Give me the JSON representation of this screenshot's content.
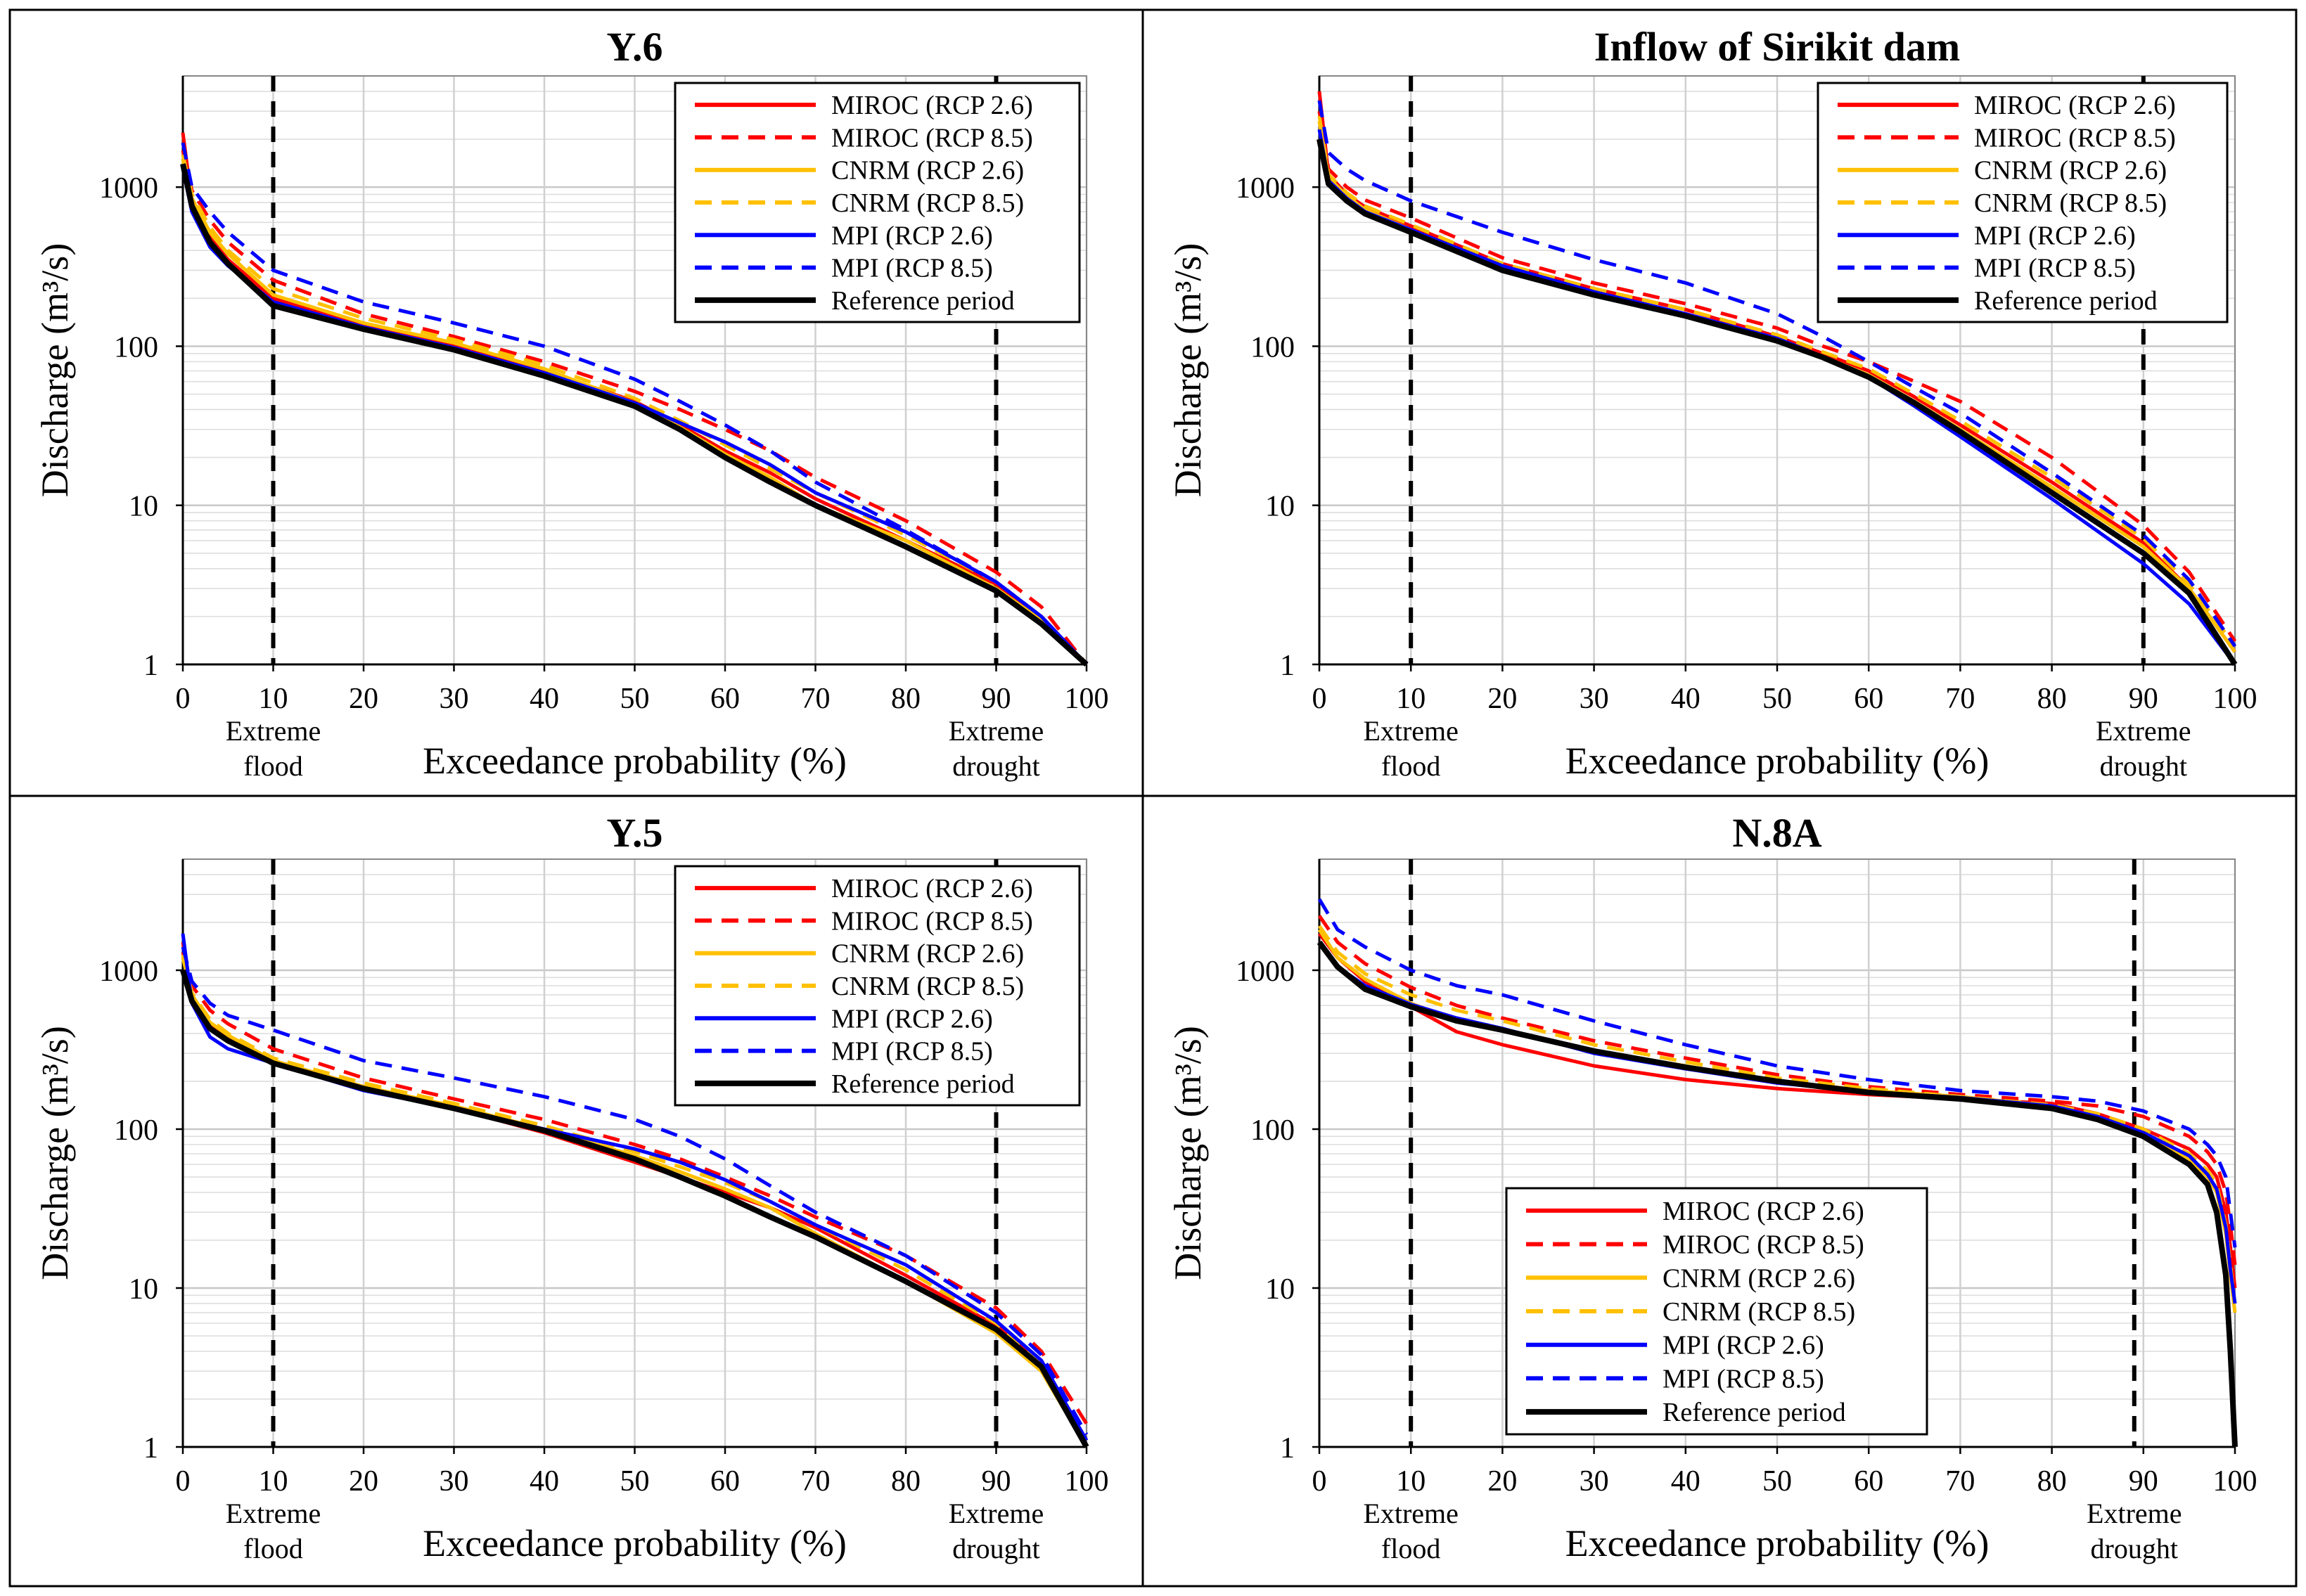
{
  "figure": {
    "annotations": {
      "flood_line1": "Extreme",
      "flood_line2": "flood",
      "drought_line1": "Extreme",
      "drought_line2": "drought"
    },
    "legend_labels": [
      "MIROC (RCP 2.6)",
      "MIROC (RCP 8.5)",
      "CNRM (RCP 2.6)",
      "CNRM (RCP 8.5)",
      "MPI (RCP 2.6)",
      "MPI (RCP 8.5)",
      "Reference period"
    ]
  },
  "chart_data": [
    {
      "type": "line",
      "title": "Y.6",
      "xlabel": "Exceedance probability (%)",
      "ylabel": "Discharge (m³/s)",
      "xlim": [
        0,
        100
      ],
      "ylim": [
        1,
        5000
      ],
      "yscale": "log",
      "grid": true,
      "legend_position": "top-right",
      "x_ticks": [
        "0",
        "10",
        "20",
        "30",
        "40",
        "50",
        "60",
        "70",
        "80",
        "90",
        "100"
      ],
      "y_ticks": [
        "1",
        "10",
        "100",
        "1000"
      ],
      "reference_lines_x": [
        10,
        90
      ],
      "x": [
        0,
        1,
        3,
        5,
        10,
        20,
        30,
        40,
        50,
        55,
        60,
        65,
        70,
        80,
        90,
        95,
        100
      ],
      "series": [
        {
          "name": "MIROC (RCP 2.6)",
          "color": "#ff0000",
          "style": "solid",
          "values": [
            2200,
            800,
            480,
            350,
            200,
            135,
            100,
            70,
            45,
            32,
            22,
            16,
            11,
            6,
            3.2,
            2.0,
            1
          ]
        },
        {
          "name": "MIROC (RCP 8.5)",
          "color": "#ff0000",
          "style": "dashed",
          "values": [
            1700,
            950,
            620,
            450,
            260,
            160,
            115,
            80,
            52,
            40,
            30,
            22,
            15,
            8,
            3.8,
            2.3,
            1
          ]
        },
        {
          "name": "CNRM (RCP 2.6)",
          "color": "#ffc000",
          "style": "solid",
          "values": [
            1500,
            850,
            520,
            380,
            210,
            140,
            105,
            72,
            44,
            31,
            21,
            15,
            10,
            6,
            3.0,
            1.9,
            1
          ]
        },
        {
          "name": "CNRM (RCP 8.5)",
          "color": "#ffc000",
          "style": "dashed",
          "values": [
            1600,
            900,
            560,
            400,
            230,
            150,
            110,
            76,
            47,
            34,
            24,
            17,
            12,
            6.5,
            3.3,
            2.0,
            1
          ]
        },
        {
          "name": "MPI (RCP 2.6)",
          "color": "#0000ff",
          "style": "solid",
          "values": [
            1300,
            700,
            420,
            320,
            190,
            132,
            98,
            68,
            44,
            33,
            25,
            18,
            12,
            6.8,
            3.3,
            2.0,
            1
          ]
        },
        {
          "name": "MPI (RCP 8.5)",
          "color": "#0000ff",
          "style": "dashed",
          "values": [
            1900,
            1000,
            700,
            520,
            300,
            190,
            140,
            100,
            62,
            45,
            32,
            22,
            14,
            7,
            3.3,
            2.0,
            1
          ]
        },
        {
          "name": "Reference period",
          "color": "#000000",
          "style": "solid",
          "values": [
            1400,
            760,
            450,
            330,
            180,
            128,
            95,
            65,
            42,
            30,
            20,
            14,
            10,
            5.5,
            2.9,
            1.8,
            1
          ]
        }
      ]
    },
    {
      "type": "line",
      "title": "Inflow of Sirikit dam",
      "xlabel": "Exceedance probability (%)",
      "ylabel": "Discharge (m³/s)",
      "xlim": [
        0,
        100
      ],
      "ylim": [
        1,
        5000
      ],
      "yscale": "log",
      "grid": true,
      "legend_position": "top-right",
      "x_ticks": [
        "0",
        "10",
        "20",
        "30",
        "40",
        "50",
        "60",
        "70",
        "80",
        "90",
        "100"
      ],
      "y_ticks": [
        "1",
        "10",
        "100",
        "1000"
      ],
      "reference_lines_x": [
        10,
        90
      ],
      "x": [
        0,
        1,
        3,
        5,
        10,
        20,
        30,
        40,
        50,
        55,
        60,
        65,
        70,
        80,
        90,
        95,
        100
      ],
      "series": [
        {
          "name": "MIROC (RCP 2.6)",
          "color": "#ff0000",
          "style": "solid",
          "values": [
            4000,
            1200,
            900,
            750,
            570,
            330,
            230,
            170,
            115,
            90,
            70,
            48,
            32,
            14,
            5.8,
            3.0,
            1.2
          ]
        },
        {
          "name": "MIROC (RCP 8.5)",
          "color": "#ff0000",
          "style": "dashed",
          "values": [
            3000,
            1300,
            1000,
            830,
            640,
            360,
            250,
            185,
            130,
            100,
            80,
            60,
            45,
            20,
            7.5,
            3.8,
            1.4
          ]
        },
        {
          "name": "CNRM (RCP 2.6)",
          "color": "#ffc000",
          "style": "solid",
          "values": [
            2600,
            1150,
            880,
            720,
            540,
            310,
            215,
            160,
            110,
            86,
            66,
            45,
            30,
            13,
            5.5,
            3.0,
            1.2
          ]
        },
        {
          "name": "CNRM (RCP 8.5)",
          "color": "#ffc000",
          "style": "dashed",
          "values": [
            2800,
            1200,
            920,
            760,
            580,
            330,
            230,
            170,
            118,
            92,
            72,
            50,
            34,
            15,
            6.2,
            3.2,
            1.3
          ]
        },
        {
          "name": "MPI (RCP 2.6)",
          "color": "#0000ff",
          "style": "solid",
          "values": [
            2300,
            1100,
            850,
            700,
            540,
            320,
            220,
            160,
            112,
            86,
            64,
            42,
            27,
            11,
            4.3,
            2.4,
            1
          ]
        },
        {
          "name": "MPI (RCP 8.5)",
          "color": "#0000ff",
          "style": "dashed",
          "values": [
            3500,
            1650,
            1300,
            1100,
            820,
            520,
            350,
            250,
            160,
            115,
            80,
            55,
            38,
            16,
            6.5,
            3.4,
            1.3
          ]
        },
        {
          "name": "Reference period",
          "color": "#000000",
          "style": "solid",
          "values": [
            2000,
            1050,
            820,
            680,
            520,
            300,
            210,
            155,
            108,
            85,
            64,
            44,
            29,
            12,
            5.0,
            2.8,
            1
          ]
        }
      ]
    },
    {
      "type": "line",
      "title": "Y.5",
      "xlabel": "Exceedance probability (%)",
      "ylabel": "Discharge (m³/s)",
      "xlim": [
        0,
        100
      ],
      "ylim": [
        1,
        5000
      ],
      "yscale": "log",
      "grid": true,
      "legend_position": "top-right",
      "x_ticks": [
        "0",
        "10",
        "20",
        "30",
        "40",
        "50",
        "60",
        "70",
        "80",
        "90",
        "100"
      ],
      "y_ticks": [
        "1",
        "10",
        "100",
        "1000"
      ],
      "reference_lines_x": [
        10,
        90
      ],
      "x": [
        0,
        1,
        3,
        5,
        10,
        20,
        30,
        40,
        50,
        55,
        60,
        65,
        70,
        80,
        90,
        95,
        100
      ],
      "series": [
        {
          "name": "MIROC (RCP 2.6)",
          "color": "#ff0000",
          "style": "solid",
          "values": [
            1500,
            650,
            450,
            380,
            270,
            185,
            135,
            95,
            62,
            50,
            40,
            32,
            24,
            12,
            5.8,
            3.3,
            1.1
          ]
        },
        {
          "name": "MIROC (RCP 8.5)",
          "color": "#ff0000",
          "style": "dashed",
          "values": [
            1300,
            800,
            560,
            460,
            320,
            210,
            155,
            115,
            80,
            65,
            50,
            38,
            28,
            16,
            7.5,
            4.0,
            1.4
          ]
        },
        {
          "name": "CNRM (RCP 2.6)",
          "color": "#ffc000",
          "style": "solid",
          "values": [
            1200,
            700,
            470,
            390,
            270,
            185,
            140,
            100,
            68,
            54,
            42,
            32,
            22,
            11,
            5.2,
            3.0,
            1
          ]
        },
        {
          "name": "CNRM (RCP 8.5)",
          "color": "#ffc000",
          "style": "dashed",
          "values": [
            1250,
            720,
            490,
            400,
            280,
            195,
            145,
            105,
            72,
            58,
            46,
            35,
            25,
            13,
            6.0,
            3.4,
            1.1
          ]
        },
        {
          "name": "MPI (RCP 2.6)",
          "color": "#0000ff",
          "style": "solid",
          "values": [
            1700,
            620,
            380,
            320,
            260,
            175,
            135,
            100,
            75,
            62,
            48,
            35,
            25,
            14,
            6.2,
            3.5,
            1.1
          ]
        },
        {
          "name": "MPI (RCP 8.5)",
          "color": "#0000ff",
          "style": "dashed",
          "values": [
            1400,
            850,
            620,
            520,
            420,
            270,
            210,
            160,
            115,
            90,
            65,
            44,
            30,
            16,
            7.0,
            3.8,
            1.2
          ]
        },
        {
          "name": "Reference period",
          "color": "#000000",
          "style": "solid",
          "values": [
            1000,
            640,
            430,
            360,
            260,
            180,
            135,
            98,
            65,
            50,
            38,
            28,
            21,
            11,
            5.5,
            3.2,
            1
          ]
        }
      ]
    },
    {
      "type": "line",
      "title": "N.8A",
      "xlabel": "Exceedance probability (%)",
      "ylabel": "Discharge (m³/s)",
      "xlim": [
        0,
        100
      ],
      "ylim": [
        1,
        5000
      ],
      "yscale": "log",
      "grid": true,
      "legend_position": "bottom-center",
      "x_ticks": [
        "0",
        "10",
        "20",
        "30",
        "40",
        "50",
        "60",
        "70",
        "80",
        "90",
        "100"
      ],
      "y_ticks": [
        "1",
        "10",
        "100",
        "1000"
      ],
      "reference_lines_x": [
        10,
        89
      ],
      "x": [
        0,
        2,
        5,
        10,
        15,
        20,
        30,
        40,
        50,
        60,
        70,
        80,
        85,
        90,
        95,
        97,
        98,
        99,
        99.5,
        100
      ],
      "series": [
        {
          "name": "MIROC (RCP 2.6)",
          "color": "#ff0000",
          "style": "solid",
          "values": [
            1700,
            1200,
            850,
            590,
            410,
            340,
            250,
            205,
            180,
            165,
            155,
            145,
            125,
            100,
            75,
            60,
            50,
            30,
            18,
            10
          ]
        },
        {
          "name": "MIROC (RCP 8.5)",
          "color": "#ff0000",
          "style": "dashed",
          "values": [
            2200,
            1500,
            1100,
            780,
            600,
            500,
            360,
            280,
            220,
            185,
            165,
            150,
            140,
            120,
            90,
            72,
            60,
            40,
            25,
            14
          ]
        },
        {
          "name": "CNRM (RCP 2.6)",
          "color": "#ffc000",
          "style": "solid",
          "values": [
            1800,
            1200,
            880,
            620,
            480,
            420,
            310,
            250,
            200,
            175,
            160,
            140,
            120,
            95,
            65,
            50,
            40,
            22,
            12,
            7
          ]
        },
        {
          "name": "CNRM (RCP 8.5)",
          "color": "#ffc000",
          "style": "dashed",
          "values": [
            1900,
            1300,
            950,
            700,
            560,
            480,
            340,
            265,
            210,
            180,
            160,
            142,
            125,
            100,
            70,
            55,
            45,
            25,
            14,
            8
          ]
        },
        {
          "name": "MPI (RCP 2.6)",
          "color": "#0000ff",
          "style": "solid",
          "values": [
            1500,
            1050,
            800,
            610,
            500,
            430,
            300,
            240,
            195,
            172,
            158,
            140,
            120,
            95,
            68,
            52,
            42,
            24,
            13,
            8
          ]
        },
        {
          "name": "MPI (RCP 8.5)",
          "color": "#0000ff",
          "style": "dashed",
          "values": [
            2800,
            1800,
            1400,
            1000,
            800,
            700,
            480,
            340,
            250,
            205,
            175,
            160,
            150,
            130,
            100,
            80,
            68,
            50,
            30,
            18
          ]
        },
        {
          "name": "Reference period",
          "color": "#000000",
          "style": "solid",
          "values": [
            1500,
            1050,
            760,
            590,
            480,
            420,
            310,
            245,
            200,
            170,
            155,
            135,
            115,
            90,
            60,
            45,
            30,
            12,
            4,
            1
          ]
        }
      ]
    }
  ]
}
